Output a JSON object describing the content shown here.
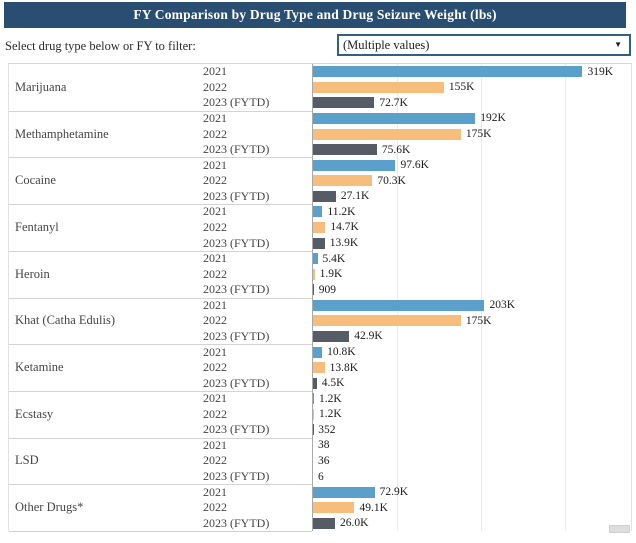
{
  "header": {
    "title": "FY Comparison by Drug Type and Drug Seizure Weight (lbs)"
  },
  "filter": {
    "label": "Select drug type below or FY to filter:",
    "dropdown_value": "(Multiple values)",
    "caret": "▼"
  },
  "colors": {
    "header_bg": "#294E72",
    "series": {
      "2021": "#5B9FCB",
      "2022": "#F7BD7D",
      "2023 (FYTD)": "#555C66"
    }
  },
  "chart_data": {
    "type": "bar",
    "orientation": "horizontal",
    "title": "FY Comparison by Drug Type and Drug Seizure Weight (lbs)",
    "value_unit": "lbs",
    "axis_max": 380000,
    "grid": true,
    "gridline_values": [
      100000,
      200000,
      300000
    ],
    "legend": "none",
    "row_labels": [
      "2021",
      "2022",
      "2023 (FYTD)"
    ],
    "groups": [
      {
        "drug": "Marijuana",
        "values": [
          319000,
          155000,
          72700
        ],
        "labels": [
          "319K",
          "155K",
          "72.7K"
        ]
      },
      {
        "drug": "Methamphetamine",
        "values": [
          192000,
          175000,
          75600
        ],
        "labels": [
          "192K",
          "175K",
          "75.6K"
        ]
      },
      {
        "drug": "Cocaine",
        "values": [
          97600,
          70300,
          27100
        ],
        "labels": [
          "97.6K",
          "70.3K",
          "27.1K"
        ]
      },
      {
        "drug": "Fentanyl",
        "values": [
          11200,
          14700,
          13900
        ],
        "labels": [
          "11.2K",
          "14.7K",
          "13.9K"
        ]
      },
      {
        "drug": "Heroin",
        "values": [
          5400,
          1900,
          909
        ],
        "labels": [
          "5.4K",
          "1.9K",
          "909"
        ]
      },
      {
        "drug": "Khat (Catha Edulis)",
        "values": [
          203000,
          175000,
          42900
        ],
        "labels": [
          "203K",
          "175K",
          "42.9K"
        ]
      },
      {
        "drug": "Ketamine",
        "values": [
          10800,
          13800,
          4500
        ],
        "labels": [
          "10.8K",
          "13.8K",
          "4.5K"
        ]
      },
      {
        "drug": "Ecstasy",
        "values": [
          1200,
          1200,
          352
        ],
        "labels": [
          "1.2K",
          "1.2K",
          "352"
        ]
      },
      {
        "drug": "LSD",
        "values": [
          38,
          36,
          6
        ],
        "labels": [
          "38",
          "36",
          "6"
        ]
      },
      {
        "drug": "Other Drugs*",
        "values": [
          72900,
          49100,
          26000
        ],
        "labels": [
          "72.9K",
          "49.1K",
          "26.0K"
        ]
      }
    ]
  }
}
